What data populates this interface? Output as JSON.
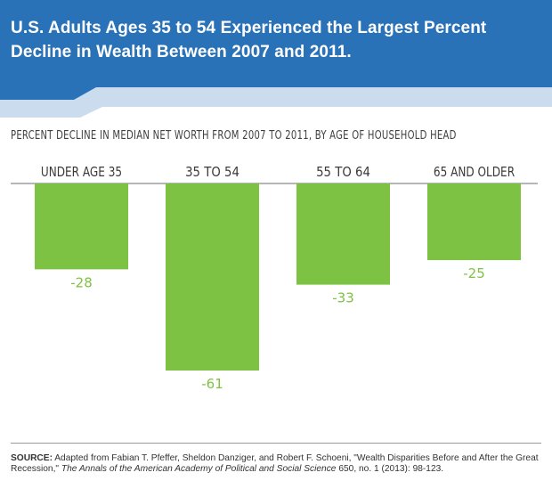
{
  "header": {
    "title": "U.S. Adults Ages 35 to 54 Experienced the Largest Percent Decline in Wealth Between 2007 and 2011.",
    "banner_color": "#2a72b8"
  },
  "chart_data": {
    "type": "bar",
    "title": "U.S. Adults Ages 35 to 54 Experienced the Largest Percent Decline in Wealth Between 2007 and 2011.",
    "subtitle": "PERCENT DECLINE IN MEDIAN NET WORTH FROM 2007 TO 2011, BY AGE OF HOUSEHOLD HEAD",
    "categories": [
      "UNDER AGE 35",
      "35 TO 54",
      "55 TO 64",
      "65 AND OLDER"
    ],
    "values": [
      -28,
      -61,
      -33,
      -25
    ],
    "value_labels": [
      "-28",
      "-61",
      "-33",
      "-25"
    ],
    "ylim": [
      -61,
      0
    ],
    "bar_color": "#7dc243",
    "grid": false,
    "legend": "none"
  },
  "source": {
    "label": "SOURCE:",
    "text_before": "Adapted from Fabian T. Pfeffer, Sheldon Danziger, and Robert F. Schoeni, \"Wealth Disparities Before and After the Great Recession,\"",
    "journal": "The Annals of the American Academy of Political and Social Science",
    "text_after": "650, no. 1 (2013): 98-123."
  }
}
